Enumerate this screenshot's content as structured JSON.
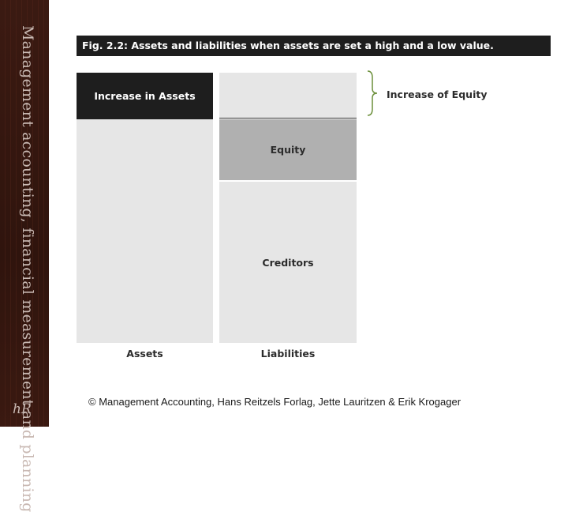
{
  "sidebar": {
    "title": "Management accounting, financial measurement and planning",
    "logo": "hR"
  },
  "figure": {
    "header": "Fig. 2.2: Assets and liabilities when assets are set a high and a low value.",
    "assets": {
      "increase_label": "Increase in Assets",
      "base_label": "",
      "column_label": "Assets"
    },
    "liabilities": {
      "equity_label": "Equity",
      "creditors_label": "Creditors",
      "column_label": "Liabilities"
    },
    "brace_label": "Increase of Equity",
    "colors": {
      "dark_block": "#1e1e1e",
      "light_block": "#e6e6e6",
      "equity_block": "#b0b0b0",
      "brace": "#6b8f3a"
    }
  },
  "footer": {
    "copyright": "© Management Accounting, Hans Reitzels Forlag, Jette Lauritzen & Erik Krogager"
  }
}
